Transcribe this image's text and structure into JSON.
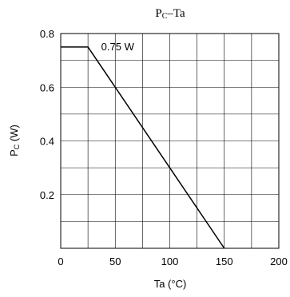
{
  "chart_data": {
    "type": "line",
    "title": {
      "main": "P",
      "sub": "C",
      "rest": "–Ta"
    },
    "xlabel": "Ta (°C)",
    "ylabel": {
      "main": "P",
      "sub": "C",
      "rest": " (W)"
    },
    "xlim": [
      0,
      200
    ],
    "ylim": [
      0,
      0.8
    ],
    "x_ticks": [
      0,
      50,
      100,
      150,
      200
    ],
    "y_ticks": [
      0.2,
      0.4,
      0.6,
      0.8
    ],
    "y_tick_labels": [
      "0.2",
      "0.4",
      "0.6",
      "0.8"
    ],
    "x_grid_step": 25,
    "y_grid_step": 0.1,
    "grid": true,
    "series": [
      {
        "x": [
          0,
          25,
          150
        ],
        "y": [
          0.75,
          0.75,
          0
        ]
      }
    ],
    "annotations": [
      {
        "text": "0.75 W",
        "x": 32,
        "y": 0.75
      }
    ]
  }
}
